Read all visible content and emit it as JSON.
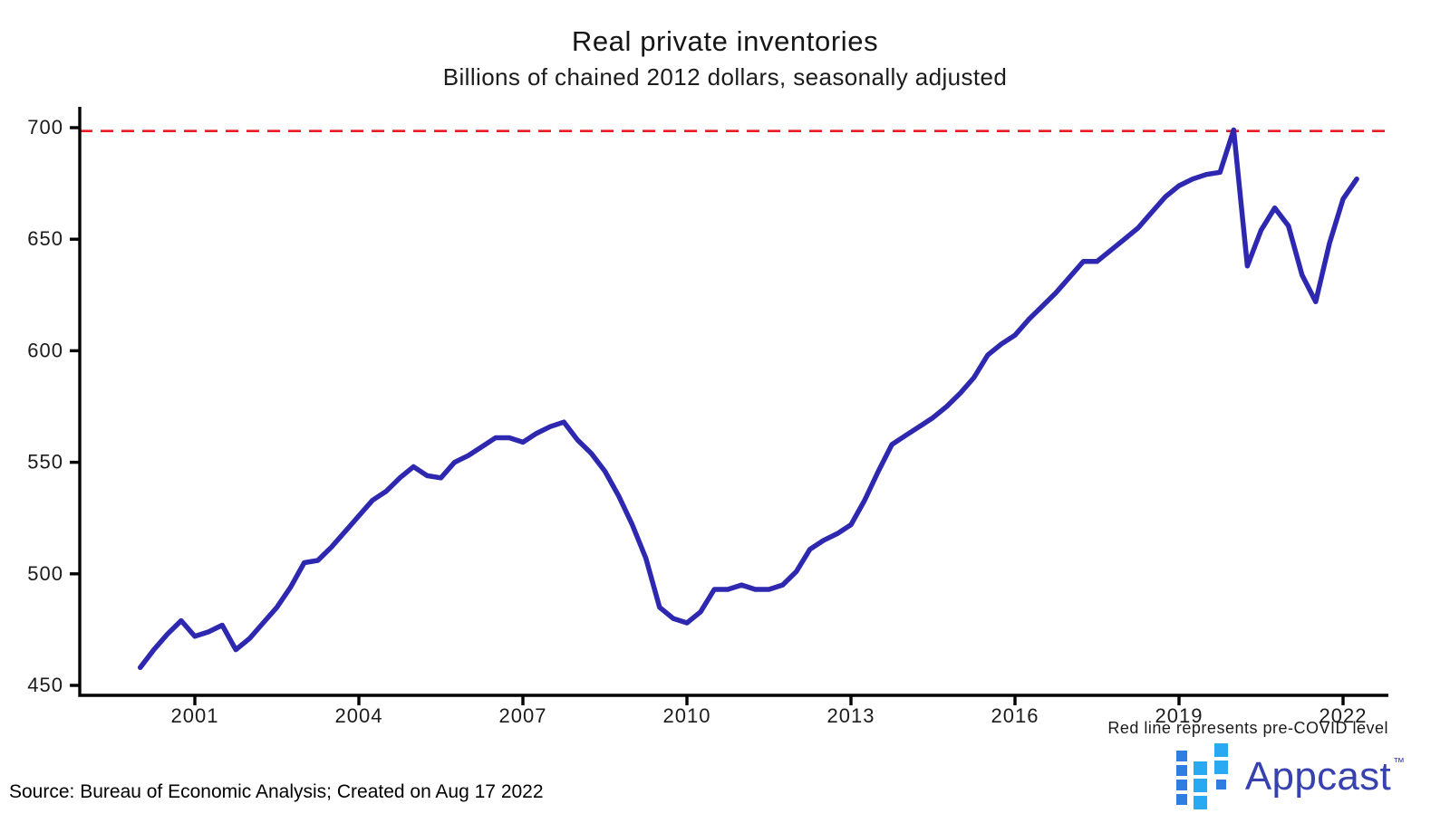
{
  "title": "Real private inventories",
  "subtitle": "Billions of chained 2012 dollars, seasonally adjusted",
  "annotation": "Red line represents pre-COVID level",
  "source": "Source: Bureau of Economic Analysis; Created on Aug 17 2022",
  "logo": {
    "text": "Appcast",
    "tm": "™"
  },
  "colors": {
    "line": "#2d28af",
    "refline": "#ec1b23",
    "axis": "#000000",
    "text": "#1b1b1b",
    "logo_text": "#3742b0",
    "logo_sq_small": "#2f7de0",
    "logo_sq_large": "#29a9f2"
  },
  "chart_data": {
    "type": "line",
    "title": "Real private inventories",
    "subtitle": "Billions of chained 2012 dollars, seasonally adjusted",
    "xlabel": "",
    "ylabel": "Billions of chained 2012 dollars",
    "ylim": [
      450,
      700
    ],
    "yticks": [
      450,
      500,
      550,
      600,
      650,
      700
    ],
    "xticks": [
      2001,
      2004,
      2007,
      2010,
      2013,
      2016,
      2019,
      2022
    ],
    "grid": false,
    "legend": false,
    "refline": {
      "value": 698.5,
      "style": "dashed",
      "label": "pre-COVID level"
    },
    "series": [
      {
        "name": "Real private inventories (quarterly)",
        "x_start": 2000.0,
        "x_step": 0.25,
        "values": [
          458,
          466,
          473,
          479,
          472,
          474,
          477,
          466,
          471,
          478,
          485,
          494,
          505,
          506,
          512,
          519,
          526,
          533,
          537,
          543,
          548,
          544,
          543,
          550,
          553,
          557,
          561,
          561,
          559,
          563,
          566,
          568,
          560,
          554,
          546,
          535,
          522,
          507,
          485,
          480,
          478,
          483,
          493,
          493,
          495,
          493,
          493,
          495,
          501,
          511,
          515,
          518,
          522,
          533,
          546,
          558,
          562,
          566,
          570,
          575,
          581,
          588,
          598,
          603,
          607,
          614,
          620,
          626,
          633,
          640,
          640,
          645,
          650,
          655,
          662,
          669,
          674,
          677,
          679,
          680,
          699,
          638,
          654,
          664,
          656,
          634,
          622,
          648,
          668,
          677
        ]
      }
    ]
  }
}
